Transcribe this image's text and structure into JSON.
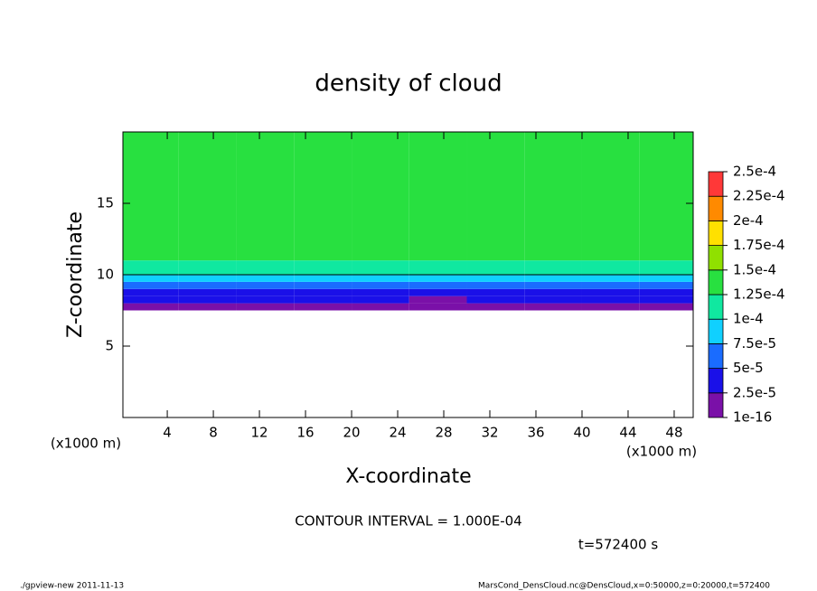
{
  "chart_data": {
    "type": "heatmap",
    "title": "density of cloud",
    "x_label": "X-coordinate",
    "y_label": "Z-coordinate",
    "x_unit": "(x1000 m)",
    "y_unit": "(x1000 m)",
    "contour_note": "CONTOUR INTERVAL = 1.000E-04",
    "time_note": "t=572400 s",
    "footer_left": "./gpview-new   2011-11-13",
    "footer_right": "MarsCond_DensCloud.nc@DensCloud,x=0:50000,z=0:20000,t=572400",
    "xlim": [
      0.15,
      49.65
    ],
    "ylim": [
      0,
      20
    ],
    "xticks": [
      4,
      8,
      12,
      16,
      20,
      24,
      28,
      32,
      36,
      40,
      44,
      48
    ],
    "yticks": [
      5,
      10,
      15
    ],
    "xedges": [
      0,
      5,
      10,
      15,
      20,
      25,
      30,
      35,
      40,
      45,
      50
    ],
    "yedges": [
      0,
      7.5,
      8,
      8.5,
      9,
      9.5,
      10,
      11,
      20
    ],
    "values": [
      [
        null,
        null,
        null,
        null,
        null,
        null,
        null,
        null,
        null,
        null
      ],
      [
        1e-06,
        1e-06,
        1e-06,
        1e-06,
        1e-06,
        1e-06,
        1e-06,
        1e-06,
        1e-06,
        1e-06
      ],
      [
        3e-05,
        3e-05,
        3e-05,
        4e-05,
        4e-05,
        1e-06,
        4e-05,
        3e-05,
        3e-05,
        3e-05
      ],
      [
        4e-05,
        4e-05,
        4e-05,
        4e-05,
        4e-05,
        3e-05,
        4e-05,
        4e-05,
        4e-05,
        4e-05
      ],
      [
        6e-05,
        6e-05,
        6e-05,
        6e-05,
        6e-05,
        6e-05,
        6e-05,
        6e-05,
        6e-05,
        6e-05
      ],
      [
        9e-05,
        9e-05,
        9e-05,
        9e-05,
        9e-05,
        9e-05,
        9e-05,
        9e-05,
        9e-05,
        9e-05
      ],
      [
        0.00012,
        0.00012,
        0.00012,
        0.00012,
        0.00012,
        0.00012,
        0.00012,
        0.00012,
        0.00012,
        0.00012
      ],
      [
        0.000135,
        0.000135,
        0.000135,
        0.000135,
        0.000135,
        0.000135,
        0.000135,
        0.000135,
        0.000135,
        0.000135
      ]
    ],
    "contour_level": 0.0001,
    "levels": [
      {
        "value": 1e-16,
        "label": "1e-16"
      },
      {
        "value": 2.5e-05,
        "label": "2.5e-5"
      },
      {
        "value": 5e-05,
        "label": "5e-5"
      },
      {
        "value": 7.5e-05,
        "label": "7.5e-5"
      },
      {
        "value": 0.0001,
        "label": "1e-4"
      },
      {
        "value": 0.000125,
        "label": "1.25e-4"
      },
      {
        "value": 0.00015,
        "label": "1.5e-4"
      },
      {
        "value": 0.000175,
        "label": "1.75e-4"
      },
      {
        "value": 0.0002,
        "label": "2e-4"
      },
      {
        "value": 0.000225,
        "label": "2.25e-4"
      },
      {
        "value": 0.00025,
        "label": "2.5e-4"
      }
    ],
    "colors": [
      "#7a10a8",
      "#1a10e8",
      "#1a6cff",
      "#10d0ff",
      "#10e8a0",
      "#28e040",
      "#90e000",
      "#ffe000",
      "#ff8a00",
      "#ff3838"
    ]
  }
}
